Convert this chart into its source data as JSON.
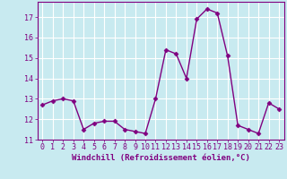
{
  "x": [
    0,
    1,
    2,
    3,
    4,
    5,
    6,
    7,
    8,
    9,
    10,
    11,
    12,
    13,
    14,
    15,
    16,
    17,
    18,
    19,
    20,
    21,
    22,
    23
  ],
  "y": [
    12.7,
    12.9,
    13.0,
    12.9,
    11.5,
    11.8,
    11.9,
    11.9,
    11.5,
    11.4,
    11.3,
    13.0,
    15.4,
    15.2,
    14.0,
    16.9,
    17.4,
    17.2,
    15.1,
    11.7,
    11.5,
    11.3,
    12.8,
    12.5
  ],
  "line_color": "#800080",
  "marker": "D",
  "marker_size": 2.5,
  "bg_color": "#c8eaf0",
  "grid_color": "#ffffff",
  "xlabel": "Windchill (Refroidissement éolien,°C)",
  "ylabel": "",
  "title": "",
  "xlim": [
    -0.5,
    23.5
  ],
  "ylim": [
    11.0,
    17.75
  ],
  "yticks": [
    11,
    12,
    13,
    14,
    15,
    16,
    17
  ],
  "xticks": [
    0,
    1,
    2,
    3,
    4,
    5,
    6,
    7,
    8,
    9,
    10,
    11,
    12,
    13,
    14,
    15,
    16,
    17,
    18,
    19,
    20,
    21,
    22,
    23
  ],
  "xlabel_color": "#800080",
  "tick_color": "#800080",
  "axis_color": "#800080",
  "label_fontsize": 6.5,
  "tick_fontsize": 6.0,
  "linewidth": 1.0
}
